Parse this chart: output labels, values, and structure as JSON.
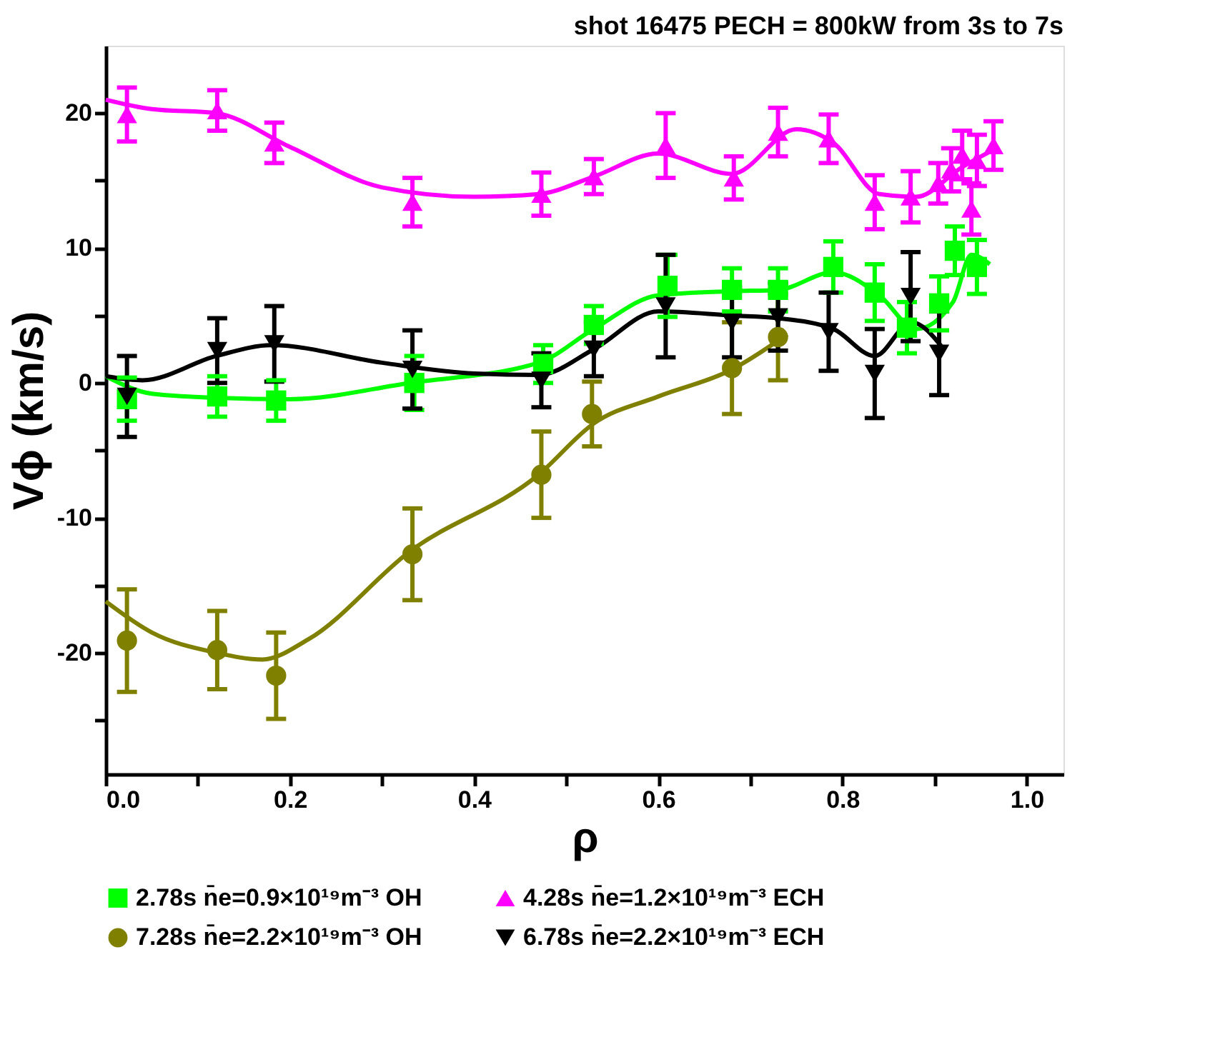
{
  "chart_data": {
    "type": "scatter",
    "title": "shot 16475  PECH = 800kW from 3s to 7s",
    "xlabel": "ρ",
    "ylabel": "Vϕ (km/s)",
    "xlim": [
      0,
      1.04
    ],
    "ylim": [
      -29,
      25
    ],
    "xticks": [
      {
        "value": 0,
        "label": "0.0"
      },
      {
        "value": 0.1,
        "label": null
      },
      {
        "value": 0.2,
        "label": "0.2"
      },
      {
        "value": 0.3,
        "label": null
      },
      {
        "value": 0.4,
        "label": "0.4"
      },
      {
        "value": 0.5,
        "label": null
      },
      {
        "value": 0.6,
        "label": "0.6"
      },
      {
        "value": 0.7,
        "label": null
      },
      {
        "value": 0.8,
        "label": "0.8"
      },
      {
        "value": 0.9,
        "label": null
      },
      {
        "value": 1.0,
        "label": "1.0"
      }
    ],
    "yticks": [
      {
        "value": -25,
        "label": null
      },
      -20,
      {
        "value": -15,
        "label": null
      },
      -10,
      {
        "value": -5,
        "label": null
      },
      0,
      {
        "value": 5,
        "label": null
      },
      10,
      {
        "value": 15,
        "label": null
      },
      20
    ],
    "grid": false,
    "legend": "bottom",
    "series": [
      {
        "name": "2.78s  n̄e=0.9×10¹⁹m⁻³  OH",
        "color": "#00ff00",
        "marker": "square",
        "x": [
          0.023,
          0.121,
          0.185,
          0.335,
          0.475,
          0.53,
          0.61,
          0.68,
          0.73,
          0.79,
          0.835,
          0.87,
          0.905,
          0.922,
          0.946
        ],
        "values": [
          -1.2,
          -1.0,
          -1.3,
          0,
          1.4,
          4.3,
          7.2,
          6.9,
          6.9,
          8.6,
          6.7,
          4.1,
          5.9,
          9.8,
          8.6
        ],
        "errors": [
          1.6,
          1.5,
          1.5,
          2,
          1.4,
          1.4,
          2.3,
          1.6,
          1.6,
          1.9,
          2.1,
          1.9,
          2,
          1.8,
          2
        ]
      },
      {
        "name": "4.28s  n̄e=1.2×10¹⁹m⁻³  ECH",
        "color": "#ff00ff",
        "marker": "triangle",
        "x": [
          0.023,
          0.121,
          0.183,
          0.333,
          0.473,
          0.53,
          0.608,
          0.682,
          0.73,
          0.785,
          0.835,
          0.874,
          0.904,
          0.918,
          0.93,
          0.94,
          0.946,
          0.964
        ],
        "values": [
          19.9,
          20.2,
          17.8,
          13.4,
          14,
          15.3,
          17.6,
          15.2,
          18.6,
          18.1,
          13.4,
          13.8,
          14.8,
          15.8,
          16.9,
          12.9,
          16.5,
          17.6
        ],
        "errors": [
          2,
          1.5,
          1.5,
          1.8,
          1.6,
          1.3,
          2.4,
          1.6,
          1.8,
          1.8,
          2,
          1.9,
          1.5,
          1.6,
          1.8,
          1.9,
          1.9,
          1.8
        ]
      },
      {
        "name": "7.28s  n̄e=2.2×10¹⁹m⁻³  OH",
        "color": "#808000",
        "marker": "circle",
        "x": [
          0.023,
          0.121,
          0.185,
          0.333,
          0.473,
          0.528,
          0.68,
          0.73
        ],
        "values": [
          -19.1,
          -19.8,
          -21.7,
          -12.7,
          -6.8,
          -2.3,
          1.1,
          3.4
        ],
        "errors": [
          3.8,
          2.9,
          3.2,
          3.4,
          3.2,
          2.4,
          3.4,
          3.2
        ]
      },
      {
        "name": "6.78s  n̄e=2.2×10¹⁹m⁻³  ECH",
        "color": "#000000",
        "marker": "triangle-down",
        "x": [
          0.023,
          0.121,
          0.183,
          0.333,
          0.473,
          0.53,
          0.608,
          0.68,
          0.73,
          0.785,
          0.835,
          0.874,
          0.905
        ],
        "values": [
          -1,
          2.4,
          2.9,
          1.0,
          0.2,
          2.5,
          5.7,
          4.5,
          4.9,
          3.8,
          0.7,
          6.4,
          2.2
        ],
        "errors": [
          3,
          2.4,
          2.8,
          2.9,
          2,
          2,
          3.8,
          2.6,
          2.5,
          2.9,
          3.3,
          3.3,
          3.1
        ]
      },
      {
        "type": "line",
        "color": "#00ff00",
        "marker": "none",
        "x": [
          0,
          0.05,
          0.12,
          0.2,
          0.33,
          0.47,
          0.53,
          0.6,
          0.68,
          0.73,
          0.79,
          0.84,
          0.88,
          0.92,
          0.94,
          0.96
        ],
        "values": [
          0.5,
          -0.8,
          -1.1,
          -1.2,
          0,
          1.5,
          4,
          6.5,
          6.8,
          6.9,
          8.2,
          6.5,
          4,
          6,
          9.5,
          8.8
        ]
      },
      {
        "type": "line",
        "color": "#ff00ff",
        "marker": "none",
        "x": [
          0,
          0.05,
          0.12,
          0.2,
          0.3,
          0.4,
          0.47,
          0.53,
          0.6,
          0.68,
          0.75,
          0.79,
          0.84,
          0.88,
          0.93,
          0.97
        ],
        "values": [
          21,
          20.3,
          20,
          17.5,
          14.5,
          13.8,
          14,
          15.3,
          17,
          15.5,
          18.8,
          17.8,
          14,
          13.8,
          16,
          17.5
        ]
      },
      {
        "type": "line",
        "color": "#808000",
        "marker": "none",
        "x": [
          0,
          0.05,
          0.12,
          0.17,
          0.22,
          0.33,
          0.47,
          0.53,
          0.6,
          0.68,
          0.74
        ],
        "values": [
          -16.2,
          -18.5,
          -20,
          -20.5,
          -19,
          -12.5,
          -6.8,
          -3,
          -1,
          1,
          3.6
        ]
      },
      {
        "type": "line",
        "color": "#000000",
        "marker": "none",
        "x": [
          0,
          0.04,
          0.12,
          0.18,
          0.3,
          0.4,
          0.47,
          0.53,
          0.6,
          0.68,
          0.73,
          0.79,
          0.835,
          0.875,
          0.91
        ],
        "values": [
          0.5,
          0.2,
          2,
          2.8,
          1.5,
          0.7,
          0.6,
          2.5,
          5.3,
          5,
          4.8,
          4,
          2,
          4.5,
          2.5
        ]
      }
    ]
  }
}
